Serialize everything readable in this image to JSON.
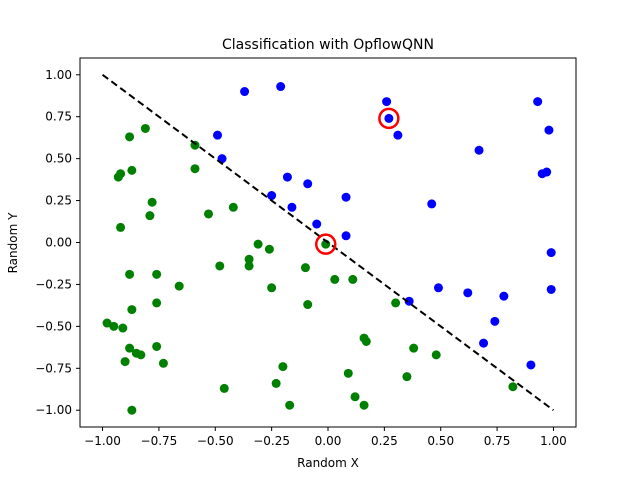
{
  "chart_data": {
    "type": "scatter",
    "title": "Classification with OpflowQNN",
    "xlabel": "Random X",
    "ylabel": "Random Y",
    "xlim": [
      -1.1,
      1.1
    ],
    "ylim": [
      -1.1,
      1.1
    ],
    "xticks": [
      -1.0,
      -0.75,
      -0.5,
      -0.25,
      0.0,
      0.25,
      0.5,
      0.75,
      1.0
    ],
    "yticks": [
      -1.0,
      -0.75,
      -0.5,
      -0.25,
      0.0,
      0.25,
      0.5,
      0.75,
      1.0
    ],
    "xtick_labels": [
      "−1.00",
      "−0.75",
      "−0.50",
      "−0.25",
      "0.00",
      "0.25",
      "0.50",
      "0.75",
      "1.00"
    ],
    "ytick_labels": [
      "−1.00",
      "−0.75",
      "−0.50",
      "−0.25",
      "0.00",
      "0.25",
      "0.50",
      "0.75",
      "1.00"
    ],
    "grid": false,
    "series": [
      {
        "color": "#0000ff",
        "points": [
          [
            -0.21,
            0.93
          ],
          [
            -0.37,
            0.9
          ],
          [
            0.26,
            0.84
          ],
          [
            0.93,
            0.84
          ],
          [
            0.27,
            0.74
          ],
          [
            -0.49,
            0.64
          ],
          [
            0.31,
            0.64
          ],
          [
            0.98,
            0.67
          ],
          [
            0.67,
            0.55
          ],
          [
            -0.47,
            0.5
          ],
          [
            0.95,
            0.41
          ],
          [
            0.97,
            0.42
          ],
          [
            -0.18,
            0.39
          ],
          [
            -0.09,
            0.35
          ],
          [
            -0.25,
            0.28
          ],
          [
            0.08,
            0.27
          ],
          [
            -0.16,
            0.21
          ],
          [
            0.46,
            0.23
          ],
          [
            -0.05,
            0.11
          ],
          [
            0.08,
            0.04
          ],
          [
            0.99,
            -0.06
          ],
          [
            0.49,
            -0.27
          ],
          [
            0.62,
            -0.3
          ],
          [
            0.99,
            -0.28
          ],
          [
            0.36,
            -0.35
          ],
          [
            0.78,
            -0.32
          ],
          [
            0.74,
            -0.47
          ],
          [
            0.69,
            -0.6
          ],
          [
            0.9,
            -0.73
          ]
        ]
      },
      {
        "color": "#008000",
        "points": [
          [
            -0.88,
            0.63
          ],
          [
            -0.81,
            0.68
          ],
          [
            -0.59,
            0.58
          ],
          [
            -0.87,
            0.43
          ],
          [
            -0.92,
            0.41
          ],
          [
            -0.93,
            0.39
          ],
          [
            -0.59,
            0.44
          ],
          [
            -0.78,
            0.24
          ],
          [
            -0.42,
            0.21
          ],
          [
            -0.79,
            0.16
          ],
          [
            -0.53,
            0.17
          ],
          [
            -0.92,
            0.09
          ],
          [
            -0.31,
            -0.01
          ],
          [
            -0.26,
            -0.04
          ],
          [
            -0.01,
            -0.01
          ],
          [
            -0.35,
            -0.1
          ],
          [
            -0.35,
            -0.14
          ],
          [
            -0.48,
            -0.14
          ],
          [
            -0.1,
            -0.15
          ],
          [
            -0.88,
            -0.19
          ],
          [
            -0.76,
            -0.19
          ],
          [
            0.03,
            -0.22
          ],
          [
            0.11,
            -0.22
          ],
          [
            -0.66,
            -0.26
          ],
          [
            -0.25,
            -0.27
          ],
          [
            -0.76,
            -0.36
          ],
          [
            -0.09,
            -0.37
          ],
          [
            0.3,
            -0.36
          ],
          [
            -0.87,
            -0.4
          ],
          [
            -0.98,
            -0.48
          ],
          [
            -0.95,
            -0.5
          ],
          [
            -0.91,
            -0.51
          ],
          [
            0.16,
            -0.57
          ],
          [
            0.17,
            -0.59
          ],
          [
            -0.76,
            -0.62
          ],
          [
            -0.88,
            -0.63
          ],
          [
            -0.85,
            -0.66
          ],
          [
            -0.83,
            -0.67
          ],
          [
            0.38,
            -0.63
          ],
          [
            0.48,
            -0.67
          ],
          [
            -0.9,
            -0.71
          ],
          [
            -0.73,
            -0.72
          ],
          [
            -0.2,
            -0.74
          ],
          [
            0.09,
            -0.78
          ],
          [
            0.35,
            -0.8
          ],
          [
            -0.23,
            -0.84
          ],
          [
            -0.46,
            -0.87
          ],
          [
            0.82,
            -0.86
          ],
          [
            0.12,
            -0.92
          ],
          [
            -0.17,
            -0.97
          ],
          [
            0.16,
            -0.97
          ],
          [
            -0.87,
            -1.0
          ]
        ]
      }
    ],
    "highlighted_points": {
      "color": "#ff0000",
      "points": [
        [
          0.27,
          0.74
        ],
        [
          -0.01,
          -0.01
        ]
      ]
    },
    "boundary_line": {
      "color": "#000000",
      "style": "dashed",
      "points": [
        [
          -1.0,
          1.0
        ],
        [
          1.0,
          -1.0
        ]
      ]
    }
  }
}
